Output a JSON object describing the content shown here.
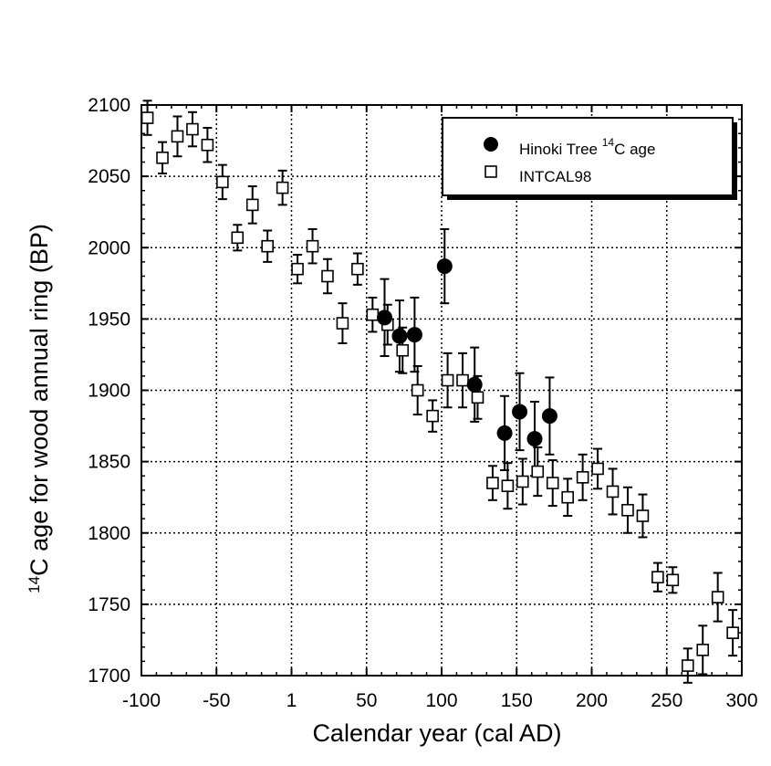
{
  "chart_data": {
    "type": "scatter",
    "xlabel_words": [
      "Calendar",
      "year",
      "(cal",
      "AD)"
    ],
    "ylabel_words": [
      "age",
      "for",
      "wood",
      "annual",
      "ring",
      "(BP)"
    ],
    "ylabel_prefix": {
      "sup": "14",
      "base": "C"
    },
    "xticks": [
      "-100",
      "-50",
      "1",
      "50",
      "100",
      "150",
      "200",
      "250",
      "300"
    ],
    "yticks": [
      "1700",
      "1750",
      "1800",
      "1850",
      "1900",
      "1950",
      "2000",
      "2050",
      "2100"
    ],
    "xlim": [
      -100,
      300
    ],
    "ylim": [
      1700,
      2100
    ],
    "grid": true,
    "legend_position": "top-right",
    "series": [
      {
        "name": "Hinoki Tree",
        "legend_suffix": {
          "sup": "14",
          "base": "C age"
        },
        "marker": "filled-circle",
        "color": "#000000",
        "points": [
          {
            "x": 62,
            "y": 1951,
            "err": 27
          },
          {
            "x": 72,
            "y": 1938,
            "err": 25
          },
          {
            "x": 82,
            "y": 1939,
            "err": 26
          },
          {
            "x": 102,
            "y": 1987,
            "err": 26
          },
          {
            "x": 122,
            "y": 1904,
            "err": 26
          },
          {
            "x": 142,
            "y": 1870,
            "err": 26
          },
          {
            "x": 152,
            "y": 1885,
            "err": 27
          },
          {
            "x": 162,
            "y": 1866,
            "err": 26
          },
          {
            "x": 172,
            "y": 1882,
            "err": 27
          }
        ]
      },
      {
        "name": "INTCAL98",
        "marker": "open-square",
        "color": "#000000",
        "points": [
          {
            "x": -96,
            "y": 2091,
            "err": 12
          },
          {
            "x": -86,
            "y": 2063,
            "err": 11
          },
          {
            "x": -76,
            "y": 2078,
            "err": 14
          },
          {
            "x": -66,
            "y": 2083,
            "err": 12
          },
          {
            "x": -56,
            "y": 2072,
            "err": 12
          },
          {
            "x": -46,
            "y": 2046,
            "err": 12
          },
          {
            "x": -36,
            "y": 2007,
            "err": 9
          },
          {
            "x": -26,
            "y": 2030,
            "err": 13
          },
          {
            "x": -16,
            "y": 2001,
            "err": 11
          },
          {
            "x": -6,
            "y": 2042,
            "err": 12
          },
          {
            "x": 4,
            "y": 1985,
            "err": 10
          },
          {
            "x": 14,
            "y": 2001,
            "err": 12
          },
          {
            "x": 24,
            "y": 1980,
            "err": 12
          },
          {
            "x": 34,
            "y": 1947,
            "err": 14
          },
          {
            "x": 44,
            "y": 1985,
            "err": 11
          },
          {
            "x": 54,
            "y": 1953,
            "err": 12
          },
          {
            "x": 64,
            "y": 1946,
            "err": 14
          },
          {
            "x": 74,
            "y": 1928,
            "err": 16
          },
          {
            "x": 84,
            "y": 1900,
            "err": 17
          },
          {
            "x": 94,
            "y": 1882,
            "err": 11
          },
          {
            "x": 104,
            "y": 1907,
            "err": 19
          },
          {
            "x": 114,
            "y": 1907,
            "err": 19
          },
          {
            "x": 124,
            "y": 1895,
            "err": 15
          },
          {
            "x": 134,
            "y": 1835,
            "err": 12
          },
          {
            "x": 144,
            "y": 1833,
            "err": 16
          },
          {
            "x": 154,
            "y": 1836,
            "err": 16
          },
          {
            "x": 164,
            "y": 1843,
            "err": 17
          },
          {
            "x": 174,
            "y": 1835,
            "err": 16
          },
          {
            "x": 184,
            "y": 1825,
            "err": 13
          },
          {
            "x": 194,
            "y": 1839,
            "err": 16
          },
          {
            "x": 204,
            "y": 1845,
            "err": 14
          },
          {
            "x": 214,
            "y": 1829,
            "err": 16
          },
          {
            "x": 224,
            "y": 1816,
            "err": 16
          },
          {
            "x": 234,
            "y": 1812,
            "err": 15
          },
          {
            "x": 244,
            "y": 1769,
            "err": 10
          },
          {
            "x": 254,
            "y": 1767,
            "err": 9
          },
          {
            "x": 264,
            "y": 1707,
            "err": 12
          },
          {
            "x": 274,
            "y": 1718,
            "err": 17
          },
          {
            "x": 284,
            "y": 1755,
            "err": 17
          },
          {
            "x": 294,
            "y": 1730,
            "err": 16
          }
        ]
      }
    ]
  }
}
